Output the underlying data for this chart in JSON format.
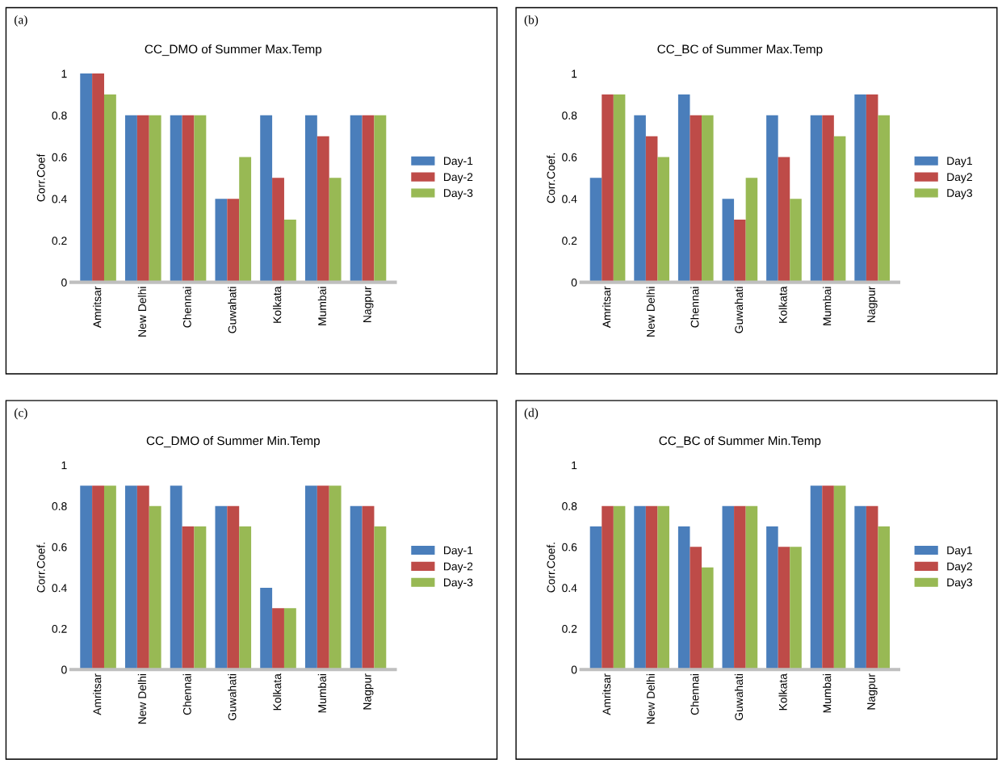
{
  "chart_data": [
    {
      "type": "bar",
      "title": "CC_DMO of Summer Max.Temp",
      "ylabel": "Corr.Coef",
      "annotations": [
        "(a)"
      ],
      "categories": [
        "Amritsar",
        "New Delhi",
        "Chennai",
        "Guwahati",
        "Kolkata",
        "Mumbai",
        "Nagpur"
      ],
      "ylim": [
        0,
        1
      ],
      "yticks": [
        0,
        {
          "value": 0.2,
          "label": "0.2"
        },
        {
          "value": 0.4,
          "label": "0.4"
        },
        {
          "value": 0.6,
          "label": "0.6"
        },
        {
          "value": 0.8,
          "label": "0.8"
        },
        1
      ],
      "legend": "right",
      "series": [
        {
          "name": "Day-1",
          "color": "#4a7ebb",
          "values": [
            1,
            0.8,
            0.8,
            0.4,
            0.8,
            0.8,
            0.8
          ]
        },
        {
          "name": "Day-2",
          "color": "#be4b48",
          "values": [
            1,
            0.8,
            0.8,
            0.4,
            0.5,
            0.7,
            0.8
          ]
        },
        {
          "name": "Day-3",
          "color": "#98b954",
          "values": [
            0.9,
            0.8,
            0.8,
            0.6,
            0.3,
            0.5,
            0.8
          ]
        }
      ]
    },
    {
      "type": "bar",
      "title": "CC_BC of Summer Max.Temp",
      "ylabel": "Corr.Coef.",
      "annotations": [
        "(b)"
      ],
      "categories": [
        "Amritsar",
        "New Delhi",
        "Chennai",
        "Guwahati",
        "Kolkata",
        "Mumbai",
        "Nagpur"
      ],
      "ylim": [
        0,
        1
      ],
      "yticks": [
        0,
        {
          "value": 0.2,
          "label": "0.2"
        },
        {
          "value": 0.4,
          "label": "0.4"
        },
        {
          "value": 0.6,
          "label": "0.6"
        },
        {
          "value": 0.8,
          "label": "0.8"
        },
        1
      ],
      "legend": "right",
      "series": [
        {
          "name": "Day1",
          "color": "#4a7ebb",
          "values": [
            0.5,
            0.8,
            0.9,
            0.4,
            0.8,
            0.8,
            0.9
          ]
        },
        {
          "name": "Day2",
          "color": "#be4b48",
          "values": [
            0.9,
            0.7,
            0.8,
            0.3,
            0.6,
            0.8,
            0.9
          ]
        },
        {
          "name": "Day3",
          "color": "#98b954",
          "values": [
            0.9,
            0.6,
            0.8,
            0.5,
            0.4,
            0.7,
            0.8
          ]
        }
      ]
    },
    {
      "type": "bar",
      "title": "CC_DMO of Summer Min.Temp",
      "ylabel": "Corr.Coef.",
      "annotations": [
        "(c)"
      ],
      "categories": [
        "Amritsar",
        "New Delhi",
        "Chennai",
        "Guwahati",
        "Kolkata",
        "Mumbai",
        "Nagpur"
      ],
      "ylim": [
        0,
        1
      ],
      "yticks": [
        0,
        {
          "value": 0.2,
          "label": "0.2"
        },
        {
          "value": 0.4,
          "label": "0.4"
        },
        {
          "value": 0.6,
          "label": "0.6"
        },
        {
          "value": 0.8,
          "label": "0.8"
        },
        1
      ],
      "legend": "right",
      "series": [
        {
          "name": "Day-1",
          "color": "#4a7ebb",
          "values": [
            0.9,
            0.9,
            0.9,
            0.8,
            0.4,
            0.9,
            0.8
          ]
        },
        {
          "name": "Day-2",
          "color": "#be4b48",
          "values": [
            0.9,
            0.9,
            0.7,
            0.8,
            0.3,
            0.9,
            0.8
          ]
        },
        {
          "name": "Day-3",
          "color": "#98b954",
          "values": [
            0.9,
            0.8,
            0.7,
            0.7,
            0.3,
            0.9,
            0.7
          ]
        }
      ]
    },
    {
      "type": "bar",
      "title": "CC_BC of Summer Min.Temp",
      "ylabel": "Corr.Coef.",
      "annotations": [
        "(d)"
      ],
      "categories": [
        "Amritsar",
        "New Delhi",
        "Chennai",
        "Guwahati",
        "Kolkata",
        "Mumbai",
        "Nagpur"
      ],
      "ylim": [
        0,
        1
      ],
      "yticks": [
        0,
        {
          "value": 0.2,
          "label": "0.2"
        },
        {
          "value": 0.4,
          "label": "0.4"
        },
        {
          "value": 0.6,
          "label": "0.6"
        },
        {
          "value": 0.8,
          "label": "0.8"
        },
        1
      ],
      "legend": "right",
      "series": [
        {
          "name": "Day1",
          "color": "#4a7ebb",
          "values": [
            0.7,
            0.8,
            0.7,
            0.8,
            0.7,
            0.9,
            0.8
          ]
        },
        {
          "name": "Day2",
          "color": "#be4b48",
          "values": [
            0.8,
            0.8,
            0.6,
            0.8,
            0.6,
            0.9,
            0.8
          ]
        },
        {
          "name": "Day3",
          "color": "#98b954",
          "values": [
            0.8,
            0.8,
            0.5,
            0.8,
            0.6,
            0.9,
            0.7
          ]
        }
      ]
    }
  ]
}
